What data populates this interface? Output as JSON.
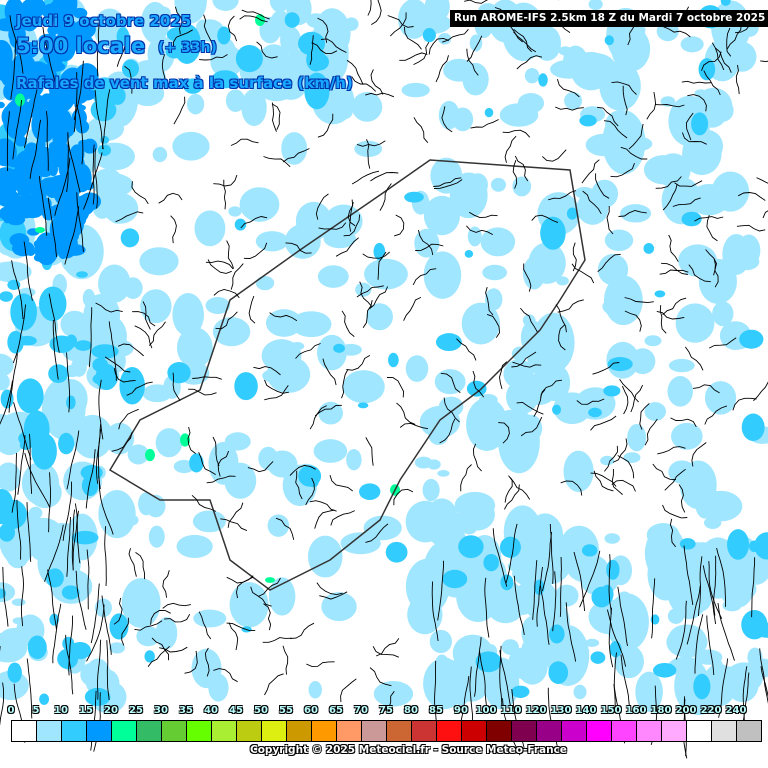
{
  "header": {
    "date": "Jeudi 9 octobre 2025",
    "time": "5:00 locale",
    "lead": "(+ 33h)",
    "parameter": "Rafales de vent max à la surface (km/h)",
    "run": "Run AROME-IFS 2.5km 18 Z du Mardi 7 octobre 2025"
  },
  "legend": {
    "labels": [
      "0",
      "5",
      "10",
      "15",
      "20",
      "25",
      "30",
      "35",
      "40",
      "45",
      "50",
      "55",
      "60",
      "65",
      "70",
      "75",
      "80",
      "85",
      "90",
      "100",
      "110",
      "120",
      "130",
      "140",
      "150",
      "160",
      "180",
      "200",
      "220",
      "240"
    ],
    "colors": [
      "#ffffff",
      "#a0e6ff",
      "#33ccff",
      "#0099ff",
      "#00ff99",
      "#33bb66",
      "#66cc33",
      "#66ff00",
      "#aaee33",
      "#bbcc11",
      "#ddee11",
      "#cc9900",
      "#ff9900",
      "#ff9966",
      "#cc9999",
      "#cc6633",
      "#cc3333",
      "#ff1010",
      "#cc0000",
      "#800000",
      "#800050",
      "#990088",
      "#cc00cc",
      "#ff00ff",
      "#ff44ff",
      "#ff88ff",
      "#ffaaff",
      "#ffffff",
      "#e0e0e0",
      "#c0c0c0"
    ]
  },
  "copyright": "Copyright © 2025 Meteociel.fr - Source Meteo-France"
}
